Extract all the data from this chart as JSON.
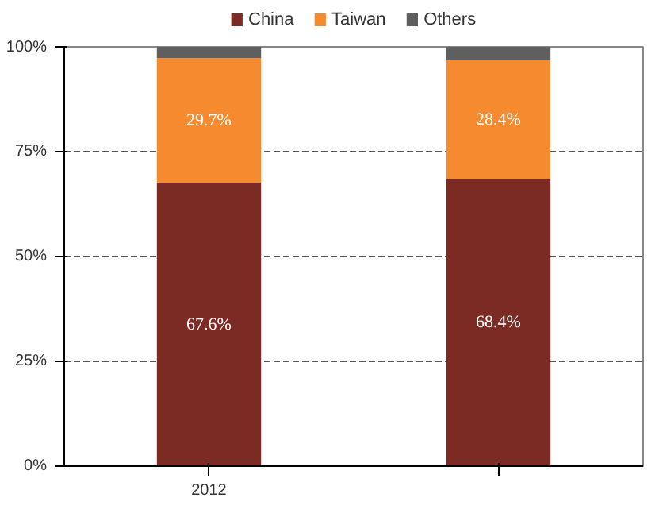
{
  "chart_data": {
    "type": "bar",
    "stacked": true,
    "categories": [
      "2012",
      null
    ],
    "series": [
      {
        "name": "China",
        "color": "#7b2b24",
        "values": [
          67.6,
          68.4
        ],
        "value_labels": [
          "67.6%",
          "68.4%"
        ]
      },
      {
        "name": "Taiwan",
        "color": "#f58a2e",
        "values": [
          29.7,
          28.4
        ],
        "value_labels": [
          "29.7%",
          "28.4%"
        ]
      },
      {
        "name": "Others",
        "color": "#5f5f5f",
        "values": [
          2.7,
          3.2
        ]
      }
    ],
    "ylim": [
      0,
      100
    ],
    "yticks": [
      {
        "value": 0,
        "label": "0%"
      },
      {
        "value": 25,
        "label": "25%"
      },
      {
        "value": 50,
        "label": "50%"
      },
      {
        "value": 75,
        "label": "75%"
      },
      {
        "value": 100,
        "label": "100%"
      }
    ],
    "grid": "y",
    "legend": "top"
  }
}
